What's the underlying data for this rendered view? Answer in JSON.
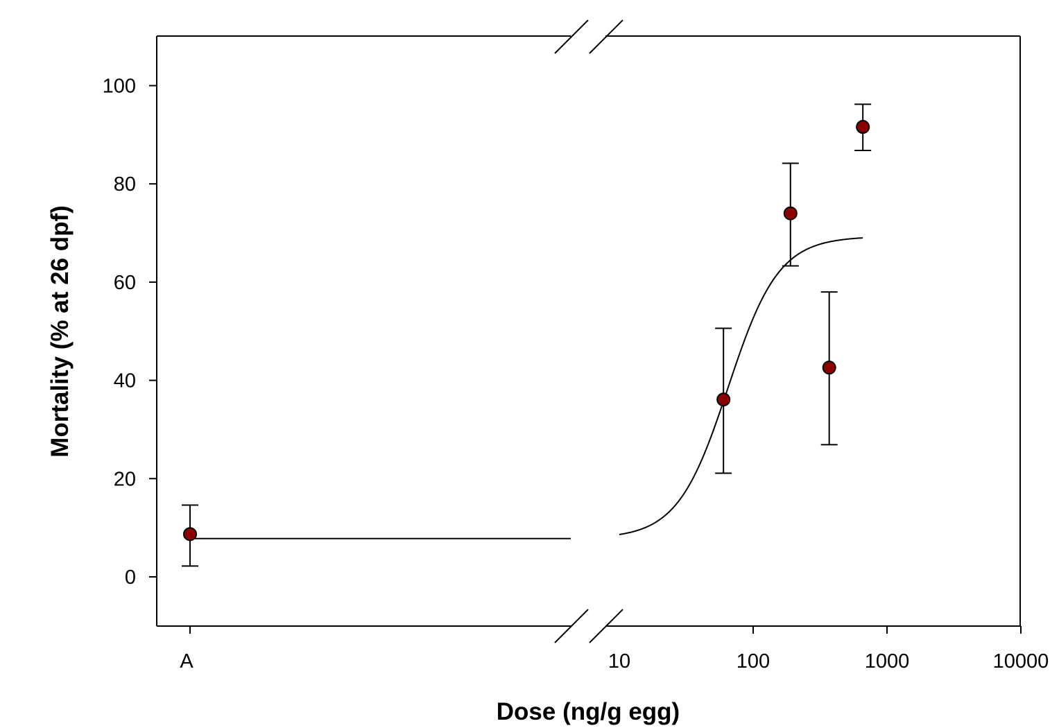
{
  "chart_data": {
    "type": "scatter",
    "title": "",
    "xlabel": "Dose (ng/g egg)",
    "ylabel": "Mortality (% at 26 dpf)",
    "x_scale": "log (broken axis: control category 'A' then log 10–10000)",
    "ylim": [
      -10,
      110
    ],
    "xlim_log": [
      10,
      10000
    ],
    "y_ticks": [
      0,
      20,
      40,
      60,
      80,
      100
    ],
    "x_tick_labels": [
      "A",
      "10",
      "100",
      "1000",
      "10000"
    ],
    "x_ticks_log": [
      10,
      100,
      1000,
      10000
    ],
    "control_label": "A",
    "points": [
      {
        "x": "A",
        "y": 8.7,
        "err_low": 2.2,
        "err_high": 14.6
      },
      {
        "x": 60,
        "y": 36.1,
        "err_low": 21.1,
        "err_high": 50.6
      },
      {
        "x": 190,
        "y": 74.0,
        "err_low": 63.3,
        "err_high": 84.2
      },
      {
        "x": 370,
        "y": 42.6,
        "err_low": 26.9,
        "err_high": 58.0
      },
      {
        "x": 660,
        "y": 91.6,
        "err_low": 86.8,
        "err_high": 96.2
      }
    ],
    "fit_curve": {
      "type": "sigmoid",
      "control_level": 7.8,
      "bottom": 7.8,
      "top": 69.3,
      "ec50": 65,
      "hill": 2.3,
      "x_range": [
        10,
        660
      ]
    },
    "grid": false,
    "legend": "none",
    "marker_color": "#8b0000"
  }
}
